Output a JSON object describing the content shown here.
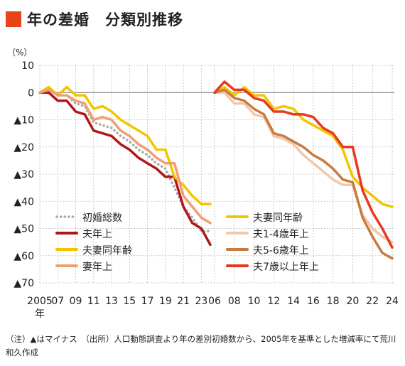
{
  "header": {
    "title": "年の差婚　分類別推移",
    "accent_color": "#e8441a"
  },
  "note": "（注）▲はマイナス　（出所）人口動態調査より年の差別初婚数から、2005年を基準とした増減率にて荒川和久作成",
  "chart_data": {
    "type": "line",
    "ylabel": "（%）",
    "ylim": [
      -70,
      10
    ],
    "y_ticks": [
      10,
      0,
      -10,
      -20,
      -30,
      -40,
      -50,
      -60,
      -70
    ],
    "y_tick_labels": [
      "10",
      "0",
      "▲10",
      "▲20",
      "▲30",
      "▲40",
      "▲50",
      "▲60",
      "▲70"
    ],
    "grid": true,
    "panels": [
      {
        "x_tick_labels": [
          "2005",
          "07",
          "09",
          "11",
          "13",
          "15",
          "17",
          "19",
          "21",
          "23"
        ],
        "x_tick_years": [
          2005,
          2007,
          2009,
          2011,
          2013,
          2015,
          2017,
          2019,
          2021,
          2023
        ],
        "x_sub_label": "年",
        "x": [
          2005,
          2006,
          2007,
          2008,
          2009,
          2010,
          2011,
          2012,
          2013,
          2014,
          2015,
          2016,
          2017,
          2018,
          2019,
          2020,
          2021,
          2022,
          2023,
          2024
        ],
        "legend_position": "bottom-left",
        "series": [
          {
            "name": "初婚総数",
            "color": "#a9a9a9",
            "dotted": true,
            "values": [
              0,
              1,
              -1,
              -1,
              -4,
              -5,
              -11,
              -12,
              -13,
              -16,
              -18,
              -21,
              -23,
              -26,
              -28,
              -35,
              -42,
              -46,
              -51,
              -51
            ]
          },
          {
            "name": "夫年上",
            "color": "#b01818",
            "values": [
              0,
              0,
              -3,
              -3,
              -7,
              -8,
              -14,
              -15,
              -16,
              -19,
              -21,
              -24,
              -26,
              -28,
              -31,
              -31,
              -42,
              -48,
              -50,
              -56
            ]
          },
          {
            "name": "夫妻同年齢",
            "color": "#f2c500",
            "values": [
              0,
              2,
              -1,
              2,
              -1,
              -1,
              -6,
              -5,
              -7,
              -10,
              -12,
              -14,
              -16,
              -21,
              -21,
              -31,
              -34,
              -38,
              -41,
              -41
            ]
          },
          {
            "name": "妻年上",
            "color": "#f0a070",
            "values": [
              0,
              1,
              -1,
              -1,
              -3,
              -4,
              -10,
              -9,
              -10,
              -14,
              -16,
              -19,
              -21,
              -24,
              -26,
              -26,
              -38,
              -42,
              -46,
              -48
            ]
          }
        ]
      },
      {
        "x_tick_labels": [
          "06",
          "08",
          "10",
          "12",
          "14",
          "16",
          "18",
          "20",
          "22",
          "24"
        ],
        "x_tick_years": [
          2006,
          2008,
          2010,
          2012,
          2014,
          2016,
          2018,
          2020,
          2022,
          2024
        ],
        "x": [
          2006,
          2007,
          2008,
          2009,
          2010,
          2011,
          2012,
          2013,
          2014,
          2015,
          2016,
          2017,
          2018,
          2019,
          2020,
          2021,
          2022,
          2023,
          2024
        ],
        "legend_position": "bottom-left",
        "series": [
          {
            "name": "夫妻同年齢",
            "color": "#f2c500",
            "values": [
              0,
              2,
              -1,
              2,
              -1,
              -1,
              -6,
              -5,
              -6,
              -10,
              -12,
              -14,
              -16,
              -21,
              -31,
              -35,
              -38,
              -41,
              -42
            ]
          },
          {
            "name": "夫1-4歳年上",
            "color": "#f0c8aa",
            "values": [
              0,
              0,
              -4,
              -4,
              -8,
              -9,
              -16,
              -17,
              -19,
              -23,
              -26,
              -29,
              -32,
              -34,
              -34,
              -45,
              -50,
              -53,
              -55
            ]
          },
          {
            "name": "夫5-6歳年上",
            "color": "#c87a40",
            "values": [
              0,
              1,
              -2,
              -3,
              -6,
              -8,
              -15,
              -16,
              -18,
              -20,
              -23,
              -25,
              -28,
              -32,
              -33,
              -46,
              -53,
              -59,
              -61
            ]
          },
          {
            "name": "夫7歳以上年上",
            "color": "#e83820",
            "values": [
              0,
              4,
              1,
              1,
              -2,
              -3,
              -7,
              -7,
              -8,
              -8,
              -9,
              -13,
              -15,
              -20,
              -20,
              -36,
              -44,
              -50,
              -57
            ]
          }
        ]
      }
    ]
  }
}
